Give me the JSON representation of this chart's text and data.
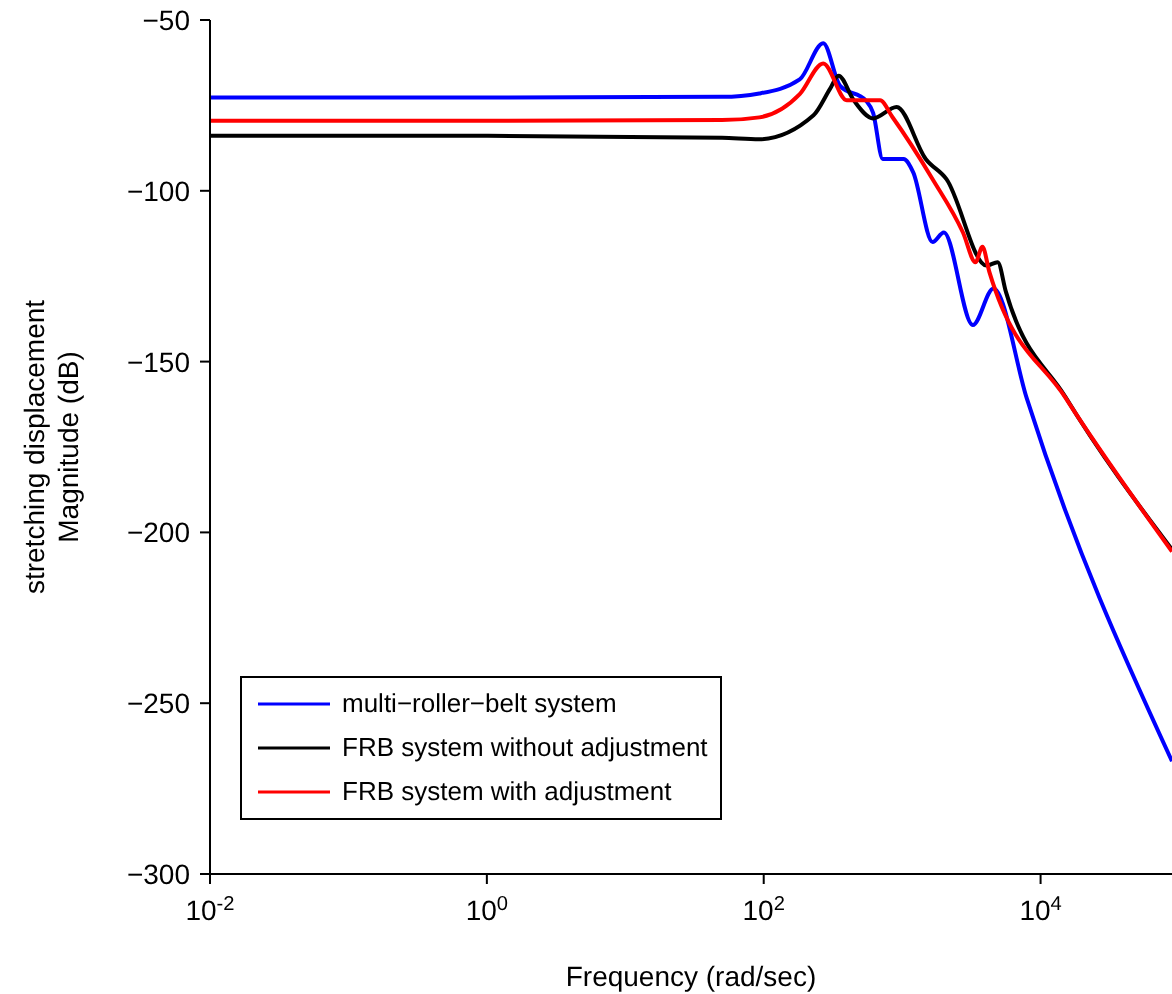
{
  "chart_data": {
    "type": "line",
    "xlabel": "Frequency  (rad/sec)",
    "ylabel": "stretching displacement\nMagnitude (dB)",
    "log": "x",
    "xlim": [
      0.01,
      89000
    ],
    "xticks": [
      {
        "value": 0.01,
        "label": "10$^{-2}$"
      },
      {
        "value": 1,
        "label": "10$^{0}$"
      },
      {
        "value": 100,
        "label": "10$^{2}$"
      },
      {
        "value": 10000,
        "label": "10$^{4}$"
      }
    ],
    "ylim": [
      -300,
      -50
    ],
    "yticks": [
      {
        "value": -300,
        "label": "−300"
      },
      {
        "value": -250,
        "label": "−250"
      },
      {
        "value": -200,
        "label": "−200"
      },
      {
        "value": -150,
        "label": "−150"
      },
      {
        "value": -100,
        "label": "−100"
      },
      {
        "value": -50,
        "label": "−50"
      }
    ],
    "grid": false,
    "legend": "bottom left",
    "marker": "none",
    "line_style": "solid",
    "series": [
      {
        "name": "multi−roller−belt system",
        "color": "#0000ff",
        "x": [
          0.01,
          1,
          50,
          93,
          182,
          269,
          355,
          550,
          617,
          724,
          1023,
          1202,
          1660,
          2000,
          3240,
          4570,
          7940,
          89000
        ],
        "values": [
          -72.7,
          -72.7,
          -72.5,
          -71.5,
          -67.4,
          -56.8,
          -69.2,
          -73.7,
          -77.2,
          -90.7,
          -90.7,
          -94.6,
          -115,
          -112.2,
          -139.3,
          -128.6,
          -160.7,
          -267
        ]
      },
      {
        "name": "FRB system without adjustment",
        "color": "#000000",
        "x": [
          0.01,
          1,
          50,
          93,
          229,
          302,
          347,
          447,
          617,
          912,
          1480,
          2090,
          4070,
          4900,
          5620,
          15100,
          89000
        ],
        "values": [
          -83.9,
          -83.9,
          -84.5,
          -84.9,
          -77.9,
          -70.1,
          -66.3,
          -73.5,
          -78.8,
          -75.5,
          -90.7,
          -96.6,
          -121.9,
          -120.9,
          -129.6,
          -160.3,
          -205
        ]
      },
      {
        "name": "FRB system with adjustment",
        "color": "#ff0000",
        "x": [
          0.01,
          1,
          50,
          93,
          182,
          269,
          398,
          692,
          850,
          1660,
          2750,
          3390,
          3800,
          4270,
          15200,
          89000
        ],
        "values": [
          -79.5,
          -79.5,
          -79.3,
          -78.5,
          -71.7,
          -62.7,
          -73.5,
          -73.5,
          -78.4,
          -96.6,
          -112.2,
          -120.9,
          -116.4,
          -123.8,
          -160.7,
          -205.6
        ]
      }
    ]
  }
}
